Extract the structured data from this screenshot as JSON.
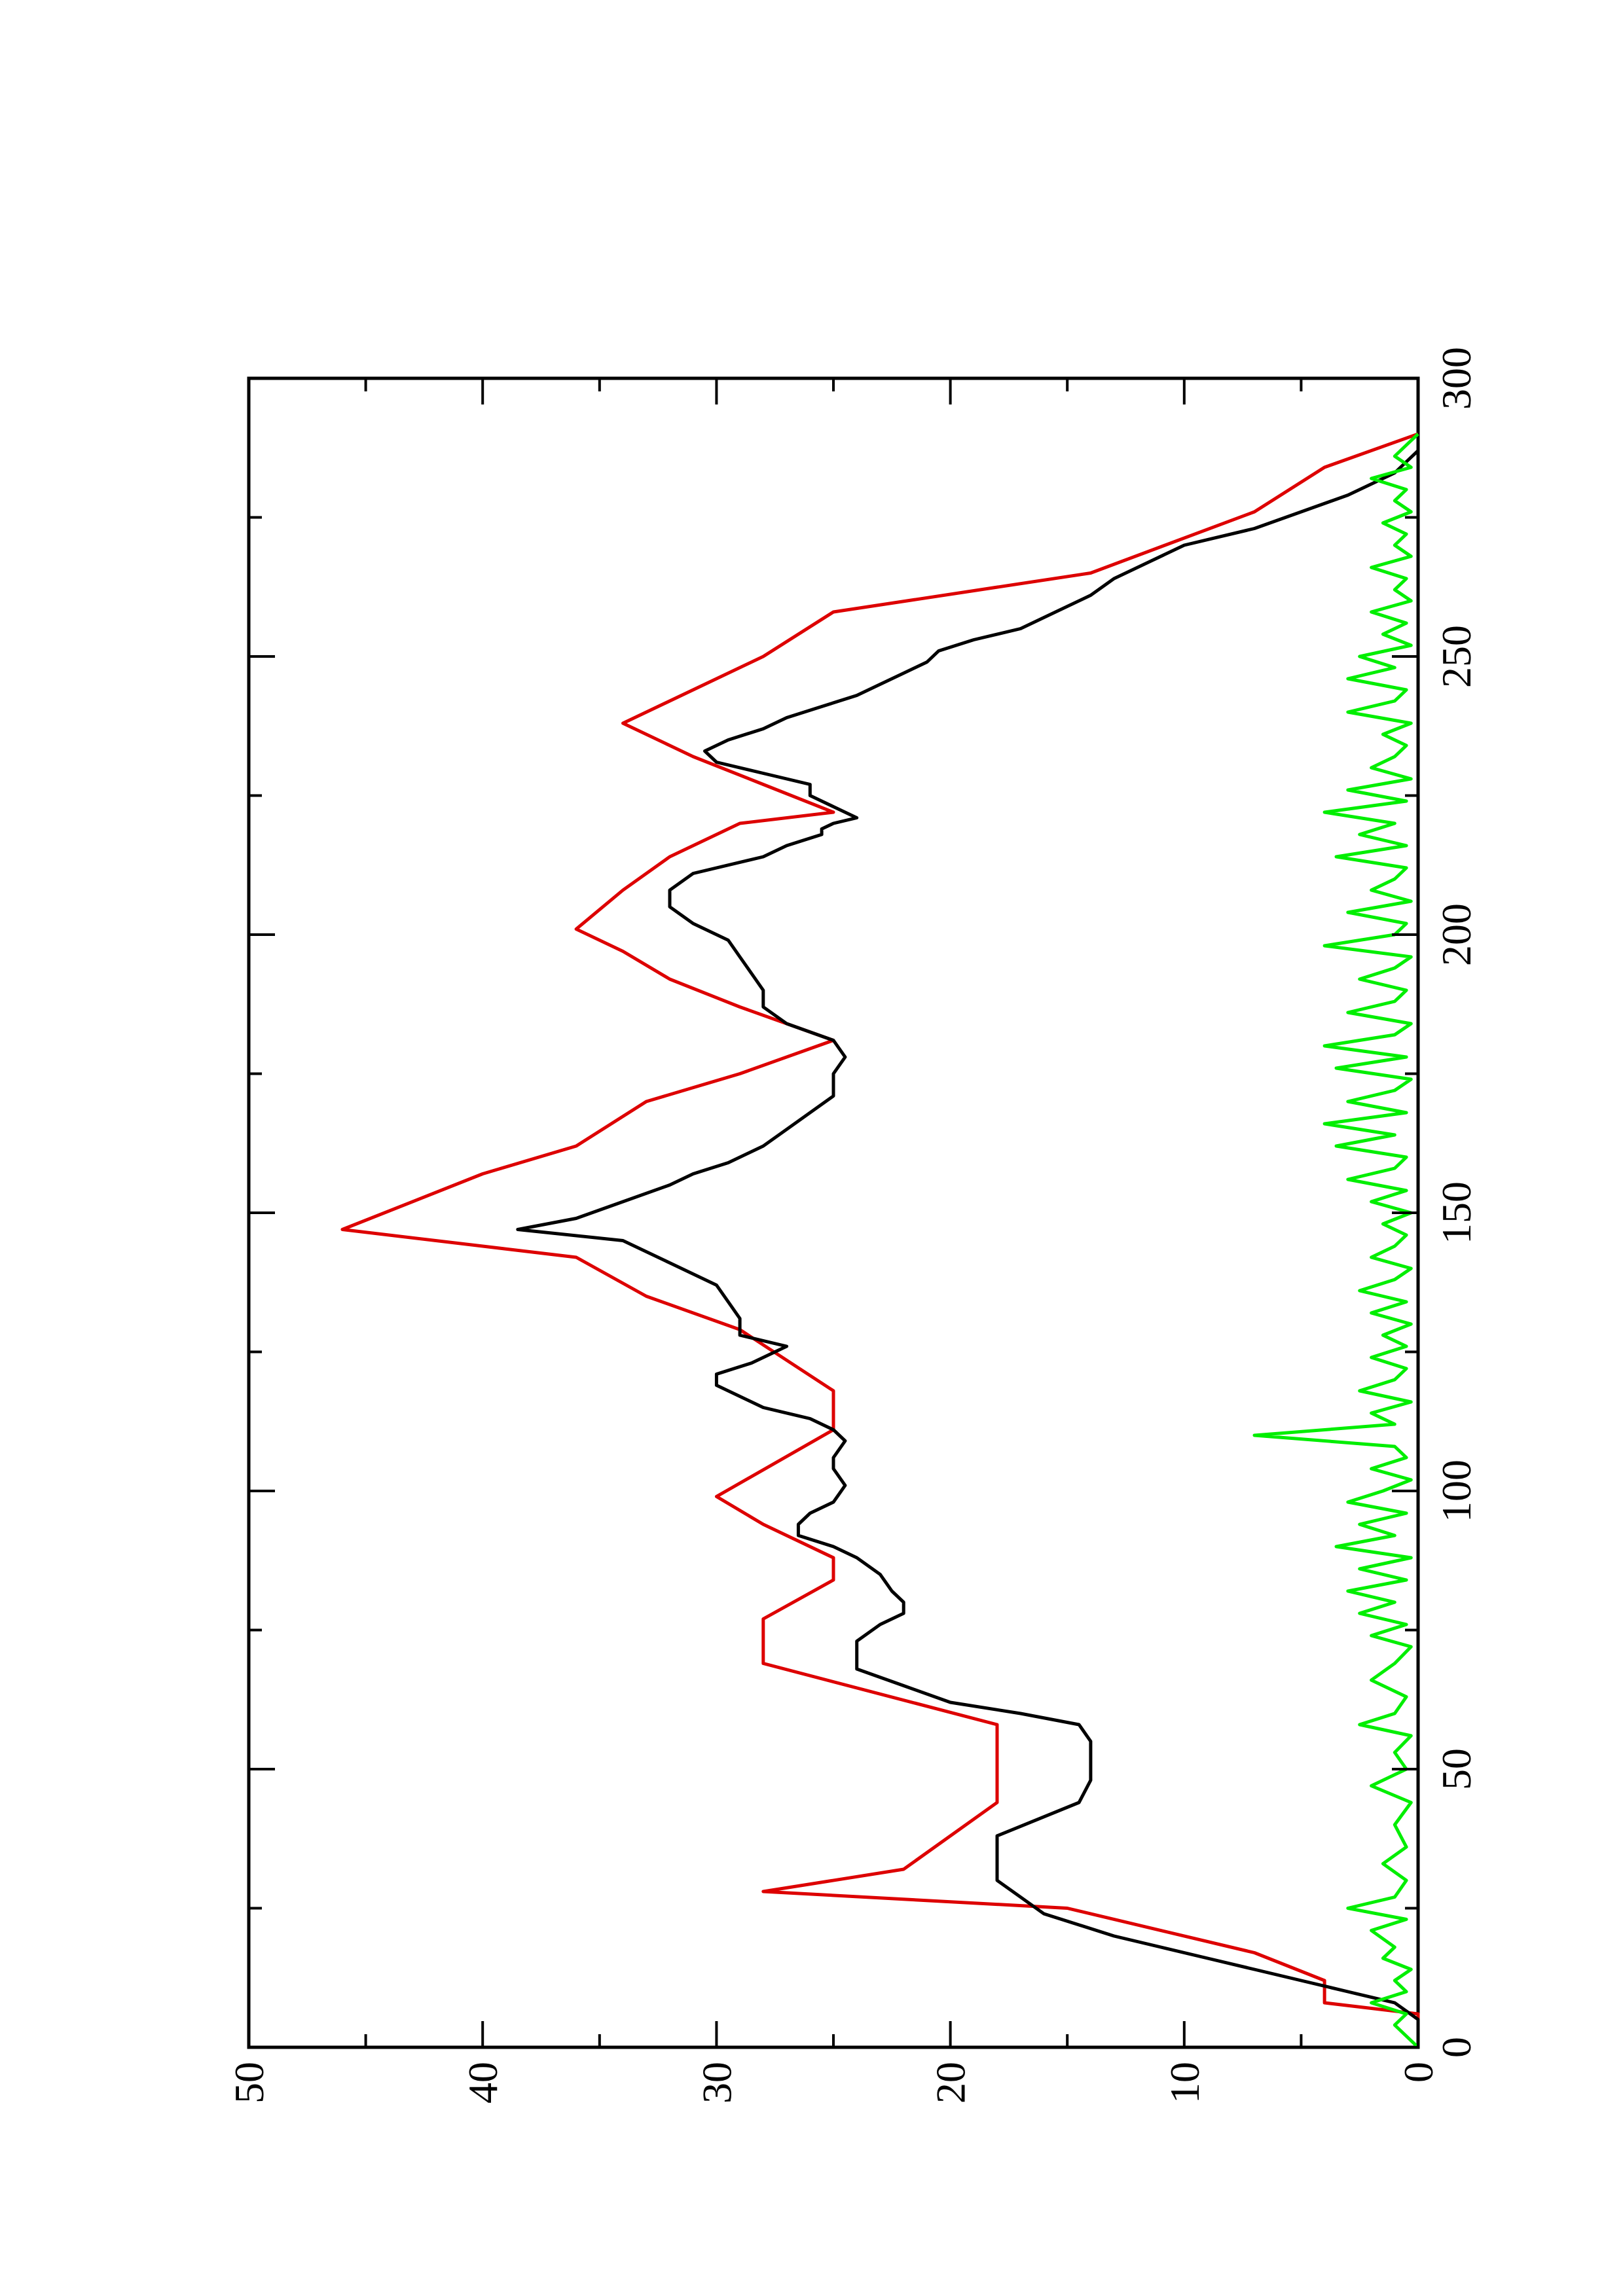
{
  "chart_data": {
    "type": "line",
    "title": "",
    "xlabel": "",
    "ylabel": "",
    "orientation": "rotated 90 degrees counter-clockwise on the page",
    "xlim": [
      0,
      300
    ],
    "ylim": [
      0,
      50
    ],
    "x_ticks": [
      "0",
      "50",
      "100",
      "150",
      "200",
      "250",
      "300"
    ],
    "y_ticks": [
      "0",
      "10",
      "20",
      "30",
      "40",
      "50"
    ],
    "grid": false,
    "legend": "none",
    "series": [
      {
        "color": "#dd0000",
        "style": "step",
        "x": [
          0,
          6,
          8,
          12,
          17,
          25,
          28,
          32,
          44,
          58,
          69,
          77,
          84,
          88,
          94,
          99,
          111,
          118,
          129,
          135,
          142,
          147,
          157,
          162,
          170,
          175,
          181,
          187,
          192,
          197,
          201,
          208,
          214,
          220,
          222,
          227,
          232,
          238,
          250,
          258,
          265,
          276,
          284,
          290
        ],
        "y": [
          0,
          0,
          4,
          4,
          7,
          15,
          28,
          22,
          18,
          18,
          28,
          28,
          25,
          25,
          28,
          30,
          25,
          25,
          29,
          33,
          36,
          46,
          40,
          36,
          33,
          29,
          25,
          29,
          32,
          34,
          36,
          34,
          32,
          29,
          25,
          28,
          31,
          34,
          28,
          25,
          14,
          7,
          4,
          0
        ]
      },
      {
        "color": "#000000",
        "style": "line",
        "x": [
          0,
          5,
          8,
          10,
          12,
          14,
          16,
          18,
          20,
          22,
          24,
          27,
          30,
          34,
          38,
          44,
          48,
          52,
          55,
          58,
          60,
          62,
          65,
          68,
          70,
          73,
          76,
          78,
          80,
          82,
          85,
          88,
          90,
          92,
          94,
          96,
          98,
          101,
          104,
          106,
          109,
          111,
          113,
          115,
          117,
          119,
          121,
          123,
          126,
          128,
          131,
          134,
          137,
          141,
          145,
          147,
          149,
          152,
          155,
          157,
          159,
          162,
          165,
          168,
          171,
          175,
          178,
          181,
          184,
          187,
          190,
          193,
          196,
          199,
          202,
          205,
          208,
          211,
          214,
          216,
          218,
          219,
          220,
          221,
          223,
          225,
          227,
          229,
          231,
          233,
          235,
          237,
          239,
          241,
          243,
          245,
          247,
          249,
          251,
          253,
          255,
          258,
          261,
          264,
          267,
          270,
          273,
          276,
          279,
          281,
          283,
          285,
          287,
          289,
          290
        ],
        "y": [
          0,
          0,
          1,
          3,
          5,
          7,
          9,
          11,
          13,
          14.5,
          16,
          17,
          18,
          18,
          18,
          14.5,
          14,
          14,
          14,
          14.5,
          17,
          20,
          22,
          24,
          24,
          24,
          23,
          22,
          22,
          22.5,
          23,
          24,
          25,
          26.5,
          26.5,
          26,
          25,
          24.5,
          25,
          25,
          24.5,
          25,
          26,
          28,
          29,
          30,
          30,
          28.5,
          27,
          29,
          29,
          29.5,
          30,
          32,
          34,
          38.5,
          36,
          34,
          32,
          31,
          29.5,
          28,
          27,
          26,
          25,
          25,
          24.5,
          25,
          27,
          28,
          28,
          28.5,
          29,
          29.5,
          31,
          32,
          32,
          31,
          28,
          27,
          25.5,
          25.5,
          25,
          24,
          25,
          26,
          26,
          28,
          30,
          30.5,
          29.5,
          28,
          27,
          25.5,
          24,
          23,
          22,
          21,
          20.5,
          19,
          17,
          15.5,
          14,
          13,
          11.5,
          10,
          7,
          5,
          3,
          2,
          1,
          0.5,
          0,
          0,
          0
        ]
      },
      {
        "color": "#00ee00",
        "style": "line",
        "x": [
          0,
          4,
          6,
          8,
          10,
          12,
          14,
          16,
          18,
          21,
          23,
          25,
          27,
          30,
          33,
          36,
          40,
          44,
          47,
          50,
          53,
          56,
          58,
          60,
          63,
          66,
          69,
          72,
          74,
          76,
          78,
          80,
          82,
          84,
          86,
          88,
          90,
          92,
          94,
          96,
          98,
          100,
          102,
          104,
          106,
          108,
          110,
          112,
          114,
          116,
          118,
          120,
          122,
          124,
          126,
          128,
          130,
          132,
          134,
          136,
          138,
          140,
          142,
          144,
          146,
          148,
          150,
          152,
          154,
          156,
          158,
          160,
          162,
          164,
          166,
          168,
          170,
          172,
          174,
          176,
          178,
          180,
          182,
          184,
          186,
          188,
          190,
          192,
          194,
          196,
          198,
          200,
          202,
          204,
          206,
          208,
          210,
          212,
          214,
          216,
          218,
          220,
          222,
          224,
          226,
          228,
          230,
          232,
          234,
          236,
          238,
          240,
          242,
          244,
          246,
          248,
          250,
          252,
          254,
          256,
          258,
          260,
          262,
          264,
          266,
          268,
          270,
          272,
          274,
          276,
          278,
          280,
          282,
          284,
          286,
          288,
          290
        ],
        "y": [
          0,
          1,
          0.5,
          2,
          0.5,
          1,
          0.3,
          1.5,
          1,
          2,
          0.5,
          3,
          1,
          0.5,
          1.5,
          0.5,
          1,
          0.3,
          2,
          0.5,
          1,
          0.3,
          2.5,
          1,
          0.5,
          2,
          1,
          0.3,
          2,
          0.5,
          2.5,
          1,
          3,
          0.5,
          2.5,
          0.3,
          3.5,
          1,
          2.5,
          0.5,
          3,
          1.5,
          0.3,
          2,
          0.5,
          1,
          7,
          1,
          2,
          0.3,
          2.5,
          1,
          0.5,
          2,
          0.5,
          1.5,
          0.3,
          2,
          0.5,
          2.5,
          1,
          0.3,
          2,
          1,
          0.5,
          1.5,
          0.3,
          2,
          0.5,
          3,
          1,
          0.5,
          3.5,
          1,
          4,
          0.5,
          3,
          1,
          0.3,
          3.5,
          0.5,
          4,
          1,
          0.3,
          3,
          1,
          0.5,
          2.5,
          1,
          0.3,
          4,
          1,
          0.5,
          3,
          0.3,
          2,
          1,
          0.5,
          3.5,
          0.5,
          2.5,
          1,
          4,
          0.5,
          3,
          0.3,
          2,
          1,
          0.5,
          1.5,
          0.3,
          3,
          1,
          0.5,
          3,
          1,
          2.5,
          0.3,
          1.5,
          0.5,
          2,
          0.3,
          1,
          0.5,
          2,
          0.3,
          1,
          0.5,
          1.5,
          0.3,
          1,
          0.5,
          2,
          0.3,
          1,
          0.5,
          0
        ]
      }
    ]
  }
}
